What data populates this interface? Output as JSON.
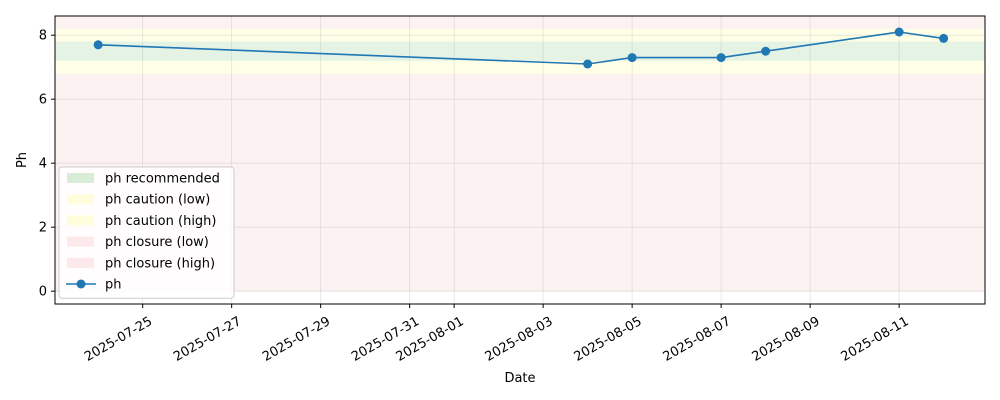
{
  "chart_data": {
    "type": "line",
    "title": "",
    "xlabel": "Date",
    "ylabel": "Ph",
    "x_type": "date",
    "xlim": [
      "2025-07-23",
      "2025-08-13"
    ],
    "ylim": [
      -0.4,
      8.6
    ],
    "x_ticks": [
      "2025-07-25",
      "2025-07-27",
      "2025-07-29",
      "2025-07-31",
      "2025-08-01",
      "2025-08-03",
      "2025-08-05",
      "2025-08-07",
      "2025-08-09",
      "2025-08-11"
    ],
    "y_ticks": [
      "0",
      "2",
      "4",
      "6",
      "8"
    ],
    "grid": true,
    "legend_position": "lower-left",
    "bands": [
      {
        "name": "ph recommended",
        "low": 7.2,
        "high": 7.8,
        "color": "#2ca02c",
        "alpha": 0.12
      },
      {
        "name": "ph caution (low)",
        "low": 6.8,
        "high": 7.2,
        "color": "#ffff66",
        "alpha": 0.15
      },
      {
        "name": "ph caution (high)",
        "low": 7.8,
        "high": 8.2,
        "color": "#ffff66",
        "alpha": 0.15
      },
      {
        "name": "ph closure (low)",
        "low": 0,
        "high": 6.8,
        "color": "#f4a6a6",
        "alpha": 0.15
      },
      {
        "name": "ph closure (high)",
        "low": 8.2,
        "high": 8.6,
        "color": "#f4a6a6",
        "alpha": 0.15
      }
    ],
    "series": [
      {
        "name": "ph",
        "color": "#1f77b4",
        "x": [
          "2025-07-24",
          "2025-08-04",
          "2025-08-05",
          "2025-08-07",
          "2025-08-08",
          "2025-08-11",
          "2025-08-12"
        ],
        "y": [
          7.7,
          7.1,
          7.3,
          7.3,
          7.5,
          8.1,
          7.9
        ]
      }
    ]
  }
}
